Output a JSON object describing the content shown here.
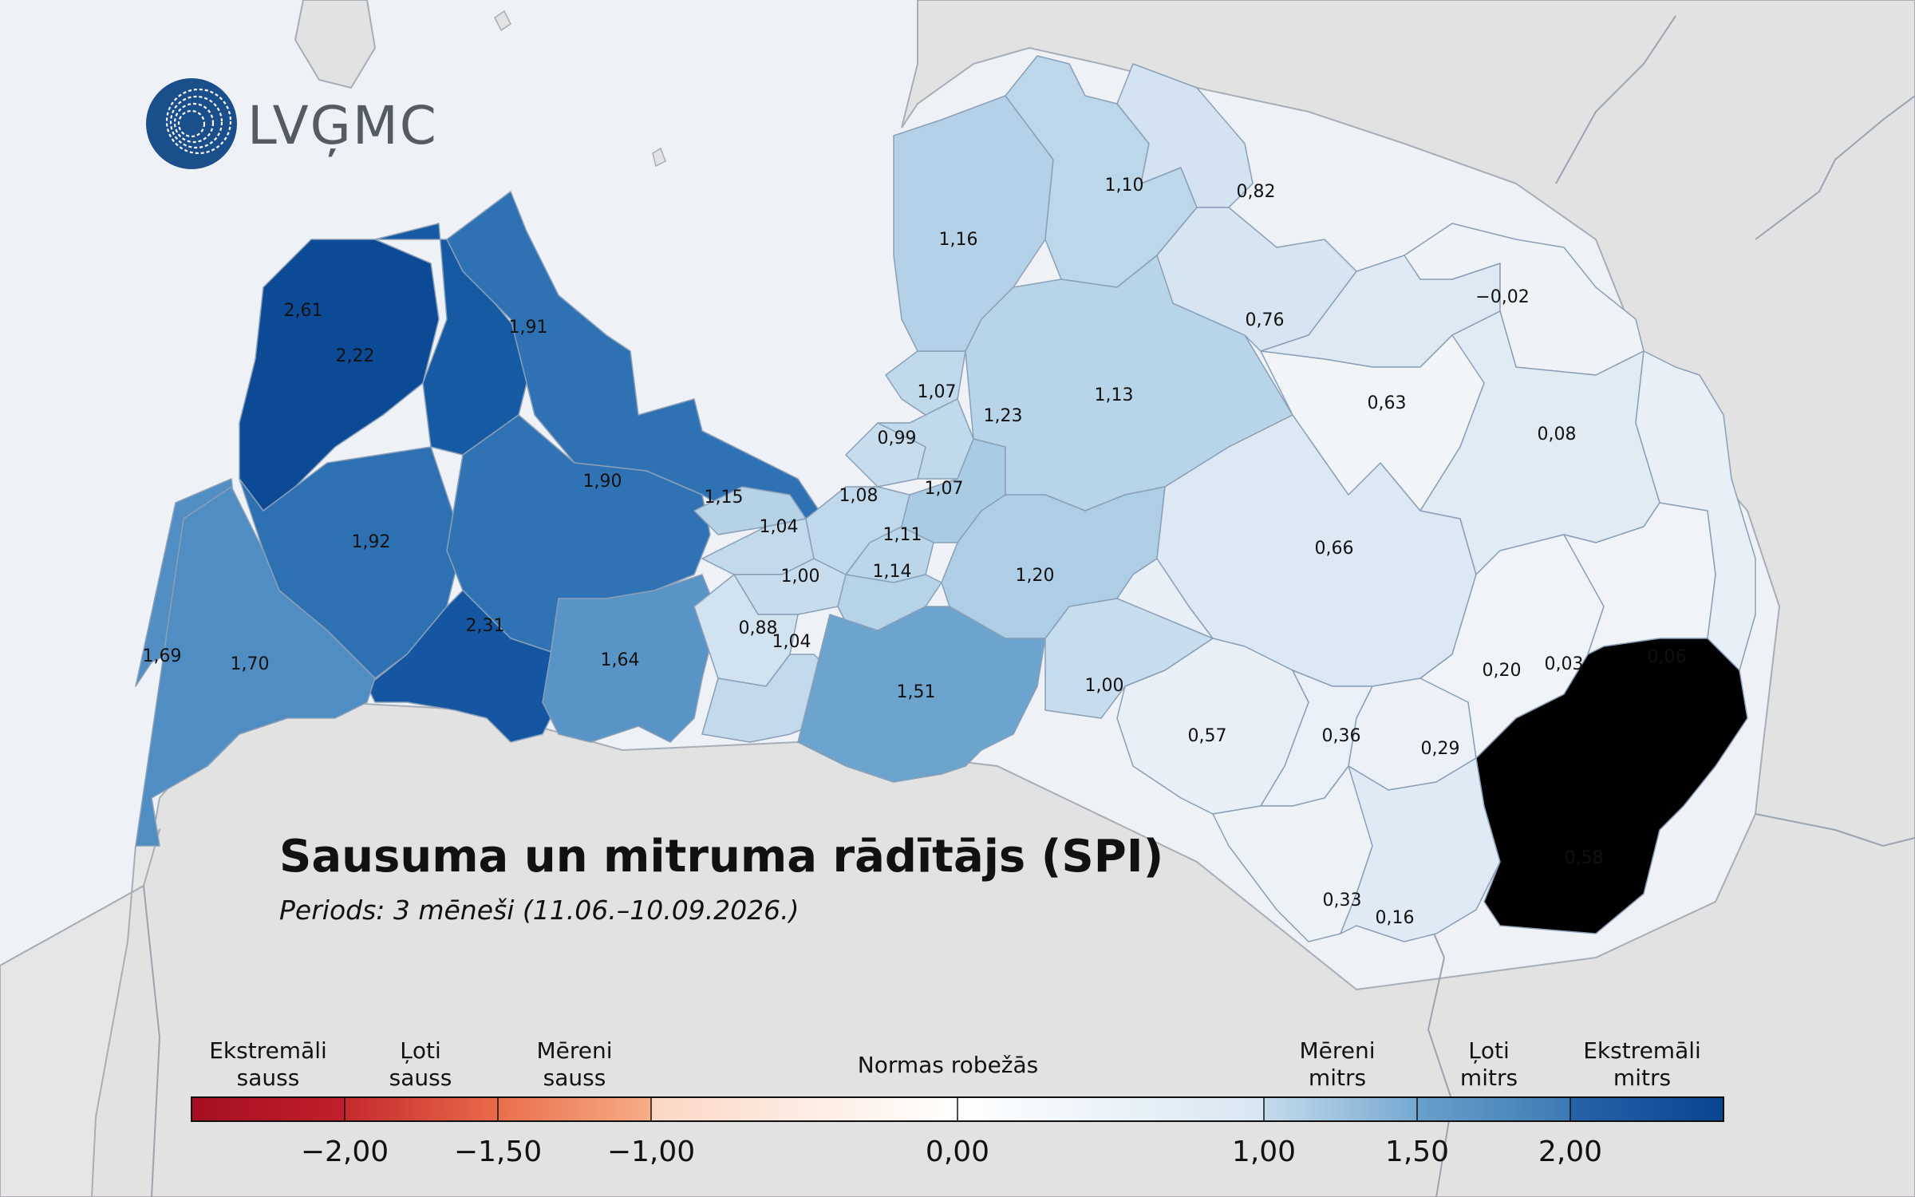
{
  "logo": {
    "text": "LVĢMC"
  },
  "title": "Sausuma un mitruma rādītājs (SPI)",
  "subtitle": "Periods: 3 mēneši (11.06.–10.09.2026.)",
  "colors": {
    "sea": "#eef1f5",
    "land_outside": "#e2e2e2",
    "border": "#9aa4b0",
    "logo_blue": "#1b4f8c"
  },
  "regions": [
    {
      "label": "2,61",
      "value": 2.61
    },
    {
      "label": "2,22",
      "value": 2.22
    },
    {
      "label": "1,91",
      "value": 1.91
    },
    {
      "label": "1,92",
      "value": 1.92
    },
    {
      "label": "1,90",
      "value": 1.9
    },
    {
      "label": "2,31",
      "value": 2.31
    },
    {
      "label": "1,69",
      "value": 1.69
    },
    {
      "label": "1,70",
      "value": 1.7
    },
    {
      "label": "1,64",
      "value": 1.64
    },
    {
      "label": "1,15",
      "value": 1.15
    },
    {
      "label": "1,04",
      "value": 1.04
    },
    {
      "label": "1,00",
      "value": 1.0
    },
    {
      "label": "0,88",
      "value": 0.88
    },
    {
      "label": "1,04",
      "value": 1.04
    },
    {
      "label": "1,08",
      "value": 1.08
    },
    {
      "label": "1,11",
      "value": 1.11
    },
    {
      "label": "1,14",
      "value": 1.14
    },
    {
      "label": "0,99",
      "value": 0.99
    },
    {
      "label": "1,07",
      "value": 1.07
    },
    {
      "label": "1,07",
      "value": 1.07
    },
    {
      "label": "1,23",
      "value": 1.23
    },
    {
      "label": "1,16",
      "value": 1.16
    },
    {
      "label": "1,10",
      "value": 1.1
    },
    {
      "label": "0,82",
      "value": 0.82
    },
    {
      "label": "1,13",
      "value": 1.13
    },
    {
      "label": "0,76",
      "value": 0.76
    },
    {
      "label": "1,20",
      "value": 1.2
    },
    {
      "label": "1,51",
      "value": 1.51
    },
    {
      "label": "1,00",
      "value": 1.0
    },
    {
      "label": "0,66",
      "value": 0.66
    },
    {
      "label": "0,63",
      "value": 0.63
    },
    {
      "label": "−0,02",
      "value": -0.02
    },
    {
      "label": "0,08",
      "value": 0.08
    },
    {
      "label": "0,57",
      "value": 0.57
    },
    {
      "label": "0,36",
      "value": 0.36
    },
    {
      "label": "0,29",
      "value": 0.29
    },
    {
      "label": "0,20",
      "value": 0.2
    },
    {
      "label": "0,03",
      "value": 0.03
    },
    {
      "label": "0,06",
      "value": 0.06
    },
    {
      "label": "0,33",
      "value": 0.33
    },
    {
      "label": "0,16",
      "value": 0.16
    },
    {
      "label": "0,58",
      "value": 0.58
    }
  ],
  "legend": {
    "categories": [
      {
        "line1": "Ekstremāli",
        "line2": "sauss"
      },
      {
        "line1": "Ļoti",
        "line2": "sauss"
      },
      {
        "line1": "Mēreni",
        "line2": "sauss"
      },
      {
        "line1": "Normas robežās",
        "line2": ""
      },
      {
        "line1": "Mēreni",
        "line2": "mitrs"
      },
      {
        "line1": "Ļoti",
        "line2": "mitrs"
      },
      {
        "line1": "Ekstremāli",
        "line2": "mitrs"
      }
    ],
    "ticks": [
      "−2,00",
      "−1,50",
      "−1,00",
      "0,00",
      "1,00",
      "1,50",
      "2,00"
    ],
    "segments": [
      {
        "from": "#a50f22",
        "to": "#c01f2a"
      },
      {
        "from": "#c42a2d",
        "to": "#ea6a4a"
      },
      {
        "from": "#ea6f4c",
        "to": "#f6ad88"
      },
      {
        "from": "#fbd7c4",
        "to": "#ffffff"
      },
      {
        "from": "#ffffff",
        "to": "#d7e6f2"
      },
      {
        "from": "#c5dbeb",
        "to": "#75a9d1"
      },
      {
        "from": "#6aa0ca",
        "to": "#3d79b5"
      },
      {
        "from": "#2663a8",
        "to": "#08458f"
      }
    ]
  }
}
